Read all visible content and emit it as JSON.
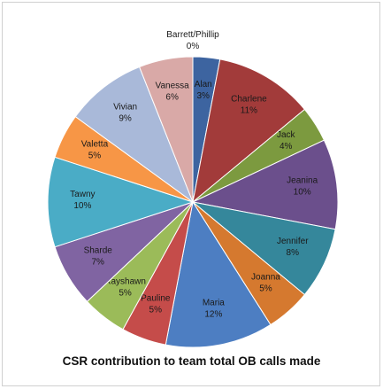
{
  "chart_data": {
    "type": "pie",
    "title": "CSR contribution to team total OB calls made",
    "slices": [
      {
        "name": "Barrett/Phillip",
        "value": 0,
        "label": "0%",
        "color": "#3c6ea8"
      },
      {
        "name": "Alan",
        "value": 3,
        "label": "3%",
        "color": "#3d64a0"
      },
      {
        "name": "Charlene",
        "value": 11,
        "label": "11%",
        "color": "#a23b3a"
      },
      {
        "name": "Jack",
        "value": 4,
        "label": "4%",
        "color": "#7c9a3f"
      },
      {
        "name": "Jeanina",
        "value": 10,
        "label": "10%",
        "color": "#6b4f8c"
      },
      {
        "name": "Jennifer",
        "value": 8,
        "label": "8%",
        "color": "#35879b"
      },
      {
        "name": "Joanna",
        "value": 5,
        "label": "5%",
        "color": "#d5792f"
      },
      {
        "name": "Maria",
        "value": 12,
        "label": "12%",
        "color": "#4d7ec2"
      },
      {
        "name": "Pauline",
        "value": 5,
        "label": "5%",
        "color": "#c54c4a"
      },
      {
        "name": "Rayshawn",
        "value": 5,
        "label": "5%",
        "color": "#9bbb59"
      },
      {
        "name": "Sharde",
        "value": 7,
        "label": "7%",
        "color": "#8064a2"
      },
      {
        "name": "Tawny",
        "value": 10,
        "label": "10%",
        "color": "#4aacc6"
      },
      {
        "name": "Valetta",
        "value": 5,
        "label": "5%",
        "color": "#f79646"
      },
      {
        "name": "Vivian",
        "value": 9,
        "label": "9%",
        "color": "#a9b9d9"
      },
      {
        "name": "Vanessa",
        "value": 6,
        "label": "6%",
        "color": "#d9a9a7"
      }
    ]
  }
}
